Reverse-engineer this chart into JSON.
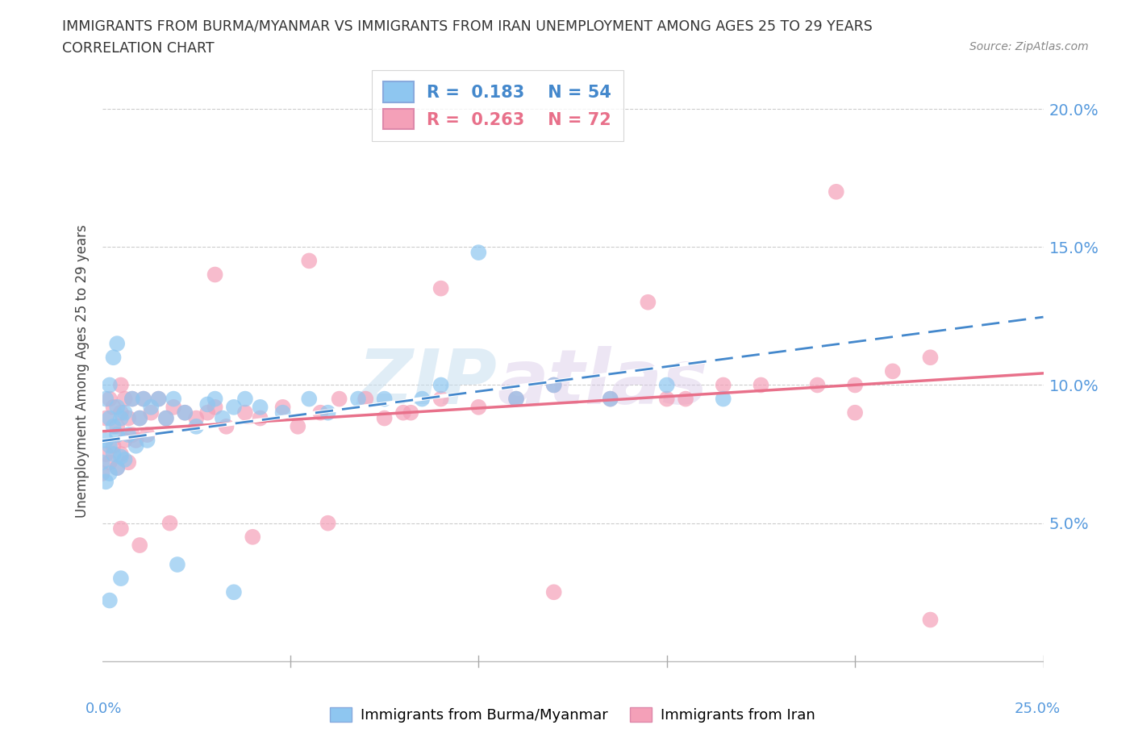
{
  "title_line1": "IMMIGRANTS FROM BURMA/MYANMAR VS IMMIGRANTS FROM IRAN UNEMPLOYMENT AMONG AGES 25 TO 29 YEARS",
  "title_line2": "CORRELATION CHART",
  "source_text": "Source: ZipAtlas.com",
  "ylabel": "Unemployment Among Ages 25 to 29 years",
  "legend_label1": "Immigrants from Burma/Myanmar",
  "legend_label2": "Immigrants from Iran",
  "R1": 0.183,
  "N1": 54,
  "R2": 0.263,
  "N2": 72,
  "color_burma": "#8ec6f0",
  "color_iran": "#f4a0b8",
  "trendline_color_burma": "#b0d0f0",
  "trendline_color_iran": "#e8708a",
  "background_color": "#ffffff",
  "xlim": [
    0.0,
    0.25
  ],
  "ylim": [
    -0.005,
    0.215
  ],
  "watermark": "ZIPatlas"
}
